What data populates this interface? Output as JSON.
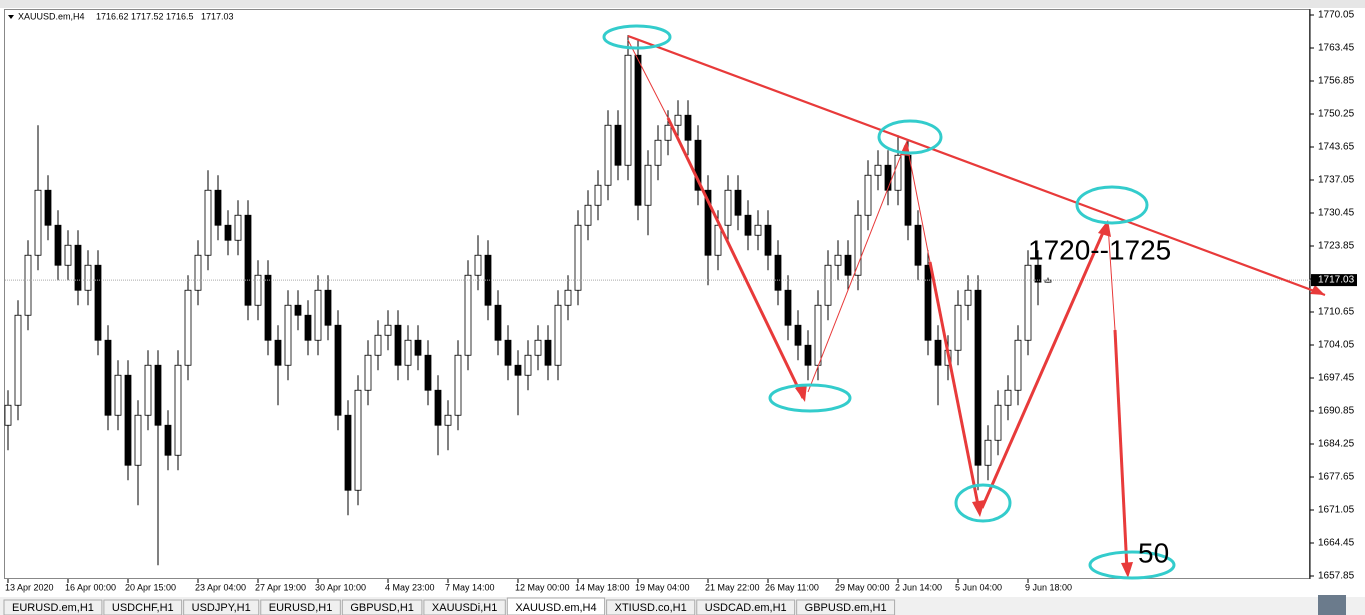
{
  "chart_data": {
    "type": "candlestick",
    "symbol": "XAUUSD.em,H4",
    "annotations": [
      "1720--1725",
      "50"
    ],
    "up_color": "#ffffff",
    "down_color": "#000000",
    "outline_color": "#000000",
    "ylim": [
      1657.45,
      1771.05
    ],
    "yticks": [
      1770.05,
      1763.45,
      1756.85,
      1750.25,
      1743.65,
      1737.05,
      1730.45,
      1723.85,
      1717.25,
      1710.65,
      1704.05,
      1697.45,
      1690.85,
      1684.25,
      1677.65,
      1671.05,
      1664.45,
      1657.85
    ],
    "categories": [
      "13 Apr 2020",
      null,
      null,
      null,
      null,
      null,
      "16 Apr 00:00",
      null,
      null,
      null,
      null,
      null,
      "20 Apr 15:00",
      null,
      null,
      null,
      null,
      null,
      null,
      "23 Apr 04:00",
      null,
      null,
      null,
      null,
      null,
      "27 Apr 19:00",
      null,
      null,
      null,
      null,
      null,
      "30 Apr 10:00",
      null,
      null,
      null,
      null,
      null,
      null,
      "4 May 23:00",
      null,
      null,
      null,
      null,
      null,
      "7 May 14:00",
      null,
      null,
      null,
      null,
      null,
      null,
      "12 May 00:00",
      null,
      null,
      null,
      null,
      null,
      "14 May 18:00",
      null,
      null,
      null,
      null,
      null,
      "19 May 04:00",
      null,
      null,
      null,
      null,
      null,
      null,
      "21 May 22:00",
      null,
      null,
      null,
      null,
      null,
      "26 May 11:00",
      null,
      null,
      null,
      null,
      null,
      null,
      "29 May 00:00",
      null,
      null,
      null,
      null,
      null,
      "2 Jun 14:00",
      null,
      null,
      null,
      null,
      null,
      "5 Jun 04:00",
      null,
      null,
      null,
      null,
      null,
      null,
      "9 Jun 18:00",
      null,
      null
    ],
    "candles": [
      [
        1688,
        1695,
        1683,
        1692
      ],
      [
        1692,
        1713,
        1689,
        1710
      ],
      [
        1710,
        1725,
        1707,
        1722
      ],
      [
        1722,
        1748,
        1719,
        1735
      ],
      [
        1735,
        1738,
        1725,
        1728
      ],
      [
        1728,
        1731,
        1717,
        1720
      ],
      [
        1720,
        1727,
        1717,
        1724
      ],
      [
        1724,
        1727,
        1712,
        1715
      ],
      [
        1715,
        1723,
        1712,
        1720
      ],
      [
        1720,
        1723,
        1702,
        1705
      ],
      [
        1705,
        1708,
        1687,
        1690
      ],
      [
        1690,
        1701,
        1687,
        1698
      ],
      [
        1698,
        1701,
        1677,
        1680
      ],
      [
        1680,
        1693,
        1672,
        1690
      ],
      [
        1690,
        1703,
        1687,
        1700
      ],
      [
        1700,
        1703,
        1660,
        1688
      ],
      [
        1688,
        1691,
        1679,
        1682
      ],
      [
        1682,
        1703,
        1679,
        1700
      ],
      [
        1700,
        1718,
        1697,
        1715
      ],
      [
        1715,
        1725,
        1712,
        1722
      ],
      [
        1722,
        1739,
        1719,
        1735
      ],
      [
        1735,
        1738,
        1725,
        1728
      ],
      [
        1728,
        1731,
        1722,
        1725
      ],
      [
        1725,
        1733,
        1722,
        1730
      ],
      [
        1730,
        1733,
        1709,
        1712
      ],
      [
        1712,
        1721,
        1709,
        1718
      ],
      [
        1718,
        1721,
        1702,
        1705
      ],
      [
        1705,
        1708,
        1692,
        1700
      ],
      [
        1700,
        1715,
        1697,
        1712
      ],
      [
        1712,
        1715,
        1707,
        1710
      ],
      [
        1710,
        1713,
        1702,
        1705
      ],
      [
        1705,
        1718,
        1702,
        1715
      ],
      [
        1715,
        1718,
        1705,
        1708
      ],
      [
        1708,
        1711,
        1687,
        1690
      ],
      [
        1690,
        1693,
        1670,
        1675
      ],
      [
        1675,
        1698,
        1672,
        1695
      ],
      [
        1695,
        1705,
        1692,
        1702
      ],
      [
        1702,
        1709,
        1699,
        1706
      ],
      [
        1706,
        1711,
        1703,
        1708
      ],
      [
        1708,
        1711,
        1697,
        1700
      ],
      [
        1700,
        1708,
        1697,
        1705
      ],
      [
        1705,
        1708,
        1699,
        1702
      ],
      [
        1702,
        1705,
        1692,
        1695
      ],
      [
        1695,
        1698,
        1682,
        1688
      ],
      [
        1688,
        1693,
        1683,
        1690
      ],
      [
        1690,
        1705,
        1687,
        1702
      ],
      [
        1702,
        1721,
        1699,
        1718
      ],
      [
        1718,
        1726,
        1715,
        1722
      ],
      [
        1722,
        1725,
        1709,
        1712
      ],
      [
        1712,
        1715,
        1702,
        1705
      ],
      [
        1705,
        1708,
        1697,
        1700
      ],
      [
        1700,
        1703,
        1690,
        1698
      ],
      [
        1698,
        1705,
        1695,
        1702
      ],
      [
        1702,
        1708,
        1699,
        1705
      ],
      [
        1705,
        1708,
        1697,
        1700
      ],
      [
        1700,
        1715,
        1697,
        1712
      ],
      [
        1712,
        1718,
        1709,
        1715
      ],
      [
        1715,
        1731,
        1712,
        1728
      ],
      [
        1728,
        1735,
        1725,
        1732
      ],
      [
        1732,
        1739,
        1729,
        1736
      ],
      [
        1736,
        1751,
        1733,
        1748
      ],
      [
        1748,
        1751,
        1737,
        1740
      ],
      [
        1740,
        1766,
        1737,
        1762
      ],
      [
        1762,
        1765,
        1729,
        1732
      ],
      [
        1732,
        1743,
        1726,
        1740
      ],
      [
        1740,
        1748,
        1737,
        1745
      ],
      [
        1745,
        1751,
        1742,
        1748
      ],
      [
        1748,
        1753,
        1745,
        1750
      ],
      [
        1750,
        1753,
        1742,
        1745
      ],
      [
        1745,
        1748,
        1732,
        1735
      ],
      [
        1735,
        1738,
        1716,
        1722
      ],
      [
        1722,
        1731,
        1719,
        1728
      ],
      [
        1728,
        1738,
        1725,
        1735
      ],
      [
        1735,
        1738,
        1727,
        1730
      ],
      [
        1730,
        1733,
        1723,
        1726
      ],
      [
        1726,
        1731,
        1723,
        1728
      ],
      [
        1728,
        1731,
        1719,
        1722
      ],
      [
        1722,
        1725,
        1712,
        1715
      ],
      [
        1715,
        1718,
        1705,
        1708
      ],
      [
        1708,
        1711,
        1701,
        1704
      ],
      [
        1704,
        1707,
        1697,
        1700
      ],
      [
        1700,
        1715,
        1697,
        1712
      ],
      [
        1712,
        1723,
        1709,
        1720
      ],
      [
        1720,
        1725,
        1717,
        1722
      ],
      [
        1722,
        1725,
        1715,
        1718
      ],
      [
        1718,
        1733,
        1715,
        1730
      ],
      [
        1730,
        1741,
        1727,
        1738
      ],
      [
        1738,
        1743,
        1735,
        1740
      ],
      [
        1740,
        1743,
        1732,
        1735
      ],
      [
        1735,
        1746,
        1732,
        1742
      ],
      [
        1742,
        1745,
        1725,
        1728
      ],
      [
        1728,
        1731,
        1717,
        1720
      ],
      [
        1720,
        1723,
        1702,
        1705
      ],
      [
        1705,
        1708,
        1692,
        1700
      ],
      [
        1700,
        1706,
        1697,
        1703
      ],
      [
        1703,
        1715,
        1700,
        1712
      ],
      [
        1712,
        1718,
        1709,
        1715
      ],
      [
        1715,
        1718,
        1675,
        1680
      ],
      [
        1680,
        1688,
        1677,
        1685
      ],
      [
        1685,
        1695,
        1682,
        1692
      ],
      [
        1692,
        1698,
        1689,
        1695
      ],
      [
        1695,
        1708,
        1692,
        1705
      ],
      [
        1705,
        1723,
        1702,
        1720
      ],
      [
        1720,
        1723,
        1712,
        1716.62
      ],
      [
        1716.62,
        1717.52,
        1716.5,
        1717.03
      ]
    ]
  },
  "tabs": [
    "EURUSD.em,H1",
    "USDCHF,H1",
    "USDJPY,H1",
    "EURUSD,H1",
    "GBPUSD,H1",
    "XAUUSDi,H1",
    "XAUUSD.em,H4",
    "XTIUSD.co,H1",
    "USDCAD.em,H1",
    "GBPUSD.em,H1"
  ],
  "active_tab": 6
}
